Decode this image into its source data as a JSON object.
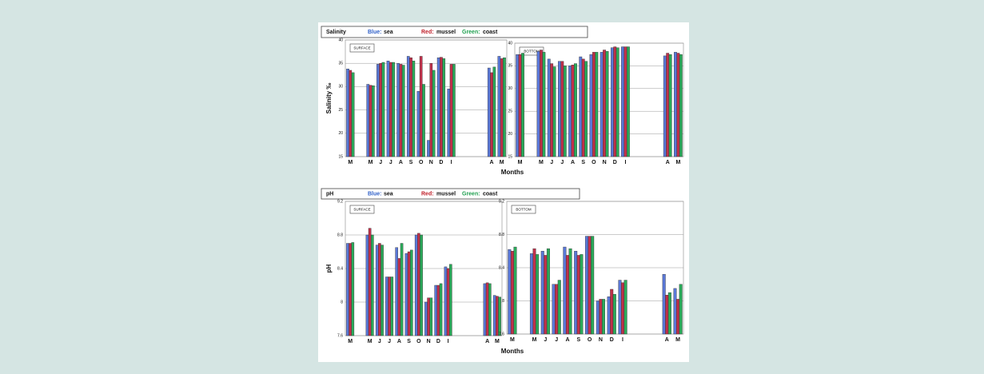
{
  "figures": [
    {
      "legend_title": "Salinity",
      "color_labels": [
        "Blue:",
        "Red:",
        "Green:"
      ],
      "xlabel": "Months"
    },
    {
      "legend_title": "pH",
      "color_labels": [
        "Blue:",
        "Red:",
        "Green:"
      ],
      "xlabel": "Months"
    }
  ],
  "chart_data": [
    {
      "type": "bar",
      "panel_label": "SURFACE",
      "ylabel": "Salinity ‰",
      "categories": [
        "M",
        null,
        "M",
        "J",
        "J",
        "A",
        "S",
        "O",
        "N",
        "D",
        "I",
        null,
        null,
        null,
        "A",
        "M"
      ],
      "ylim": [
        15,
        40
      ],
      "yticks": [
        15,
        20,
        25,
        30,
        35,
        40
      ],
      "grid": true,
      "series": [
        {
          "name": "sea",
          "color": "#5a78d8",
          "values": [
            33.8,
            null,
            30.5,
            34.8,
            35.5,
            35,
            36.5,
            29,
            18.5,
            36.2,
            29.5,
            null,
            null,
            null,
            34,
            36.5
          ]
        },
        {
          "name": "mussel",
          "color": "#c0304a",
          "values": [
            33.5,
            null,
            30.3,
            35,
            35.2,
            34.8,
            36.2,
            36.5,
            35,
            36.3,
            34.8,
            null,
            null,
            null,
            33,
            36
          ]
        },
        {
          "name": "coast",
          "color": "#2aaa5a",
          "values": [
            33,
            null,
            30.2,
            35.2,
            35.2,
            34.6,
            35.5,
            30.5,
            33.5,
            36,
            34.8,
            null,
            null,
            null,
            34.2,
            36.2
          ]
        }
      ]
    },
    {
      "type": "bar",
      "panel_label": "BOTTOM",
      "categories": [
        "M",
        null,
        "M",
        "J",
        "J",
        "A",
        "S",
        "O",
        "N",
        "D",
        "I",
        null,
        null,
        null,
        "A",
        "M"
      ],
      "ylim": [
        15,
        40
      ],
      "yticks": [
        15,
        20,
        25,
        30,
        35,
        40
      ],
      "grid": true,
      "series": [
        {
          "name": "sea",
          "color": "#5a78d8",
          "values": [
            37.5,
            null,
            38.2,
            36.5,
            36,
            35,
            37,
            37.5,
            38,
            39,
            39.2,
            null,
            null,
            null,
            37.2,
            38
          ]
        },
        {
          "name": "mussel",
          "color": "#c0304a",
          "values": [
            37.5,
            null,
            38.5,
            35.5,
            36,
            35.2,
            36.5,
            38,
            38.5,
            39.2,
            39.2,
            null,
            null,
            null,
            37.8,
            37.8
          ]
        },
        {
          "name": "coast",
          "color": "#2aaa5a",
          "values": [
            37.8,
            null,
            38,
            34.8,
            35,
            35.5,
            36,
            38,
            38.2,
            39,
            39.2,
            null,
            null,
            null,
            37.5,
            37.5
          ]
        }
      ]
    },
    {
      "type": "bar",
      "panel_label": "SURFACE",
      "ylabel": "pH",
      "categories": [
        "M",
        null,
        "M",
        "J",
        "J",
        "A",
        "S",
        "O",
        "N",
        "D",
        "I",
        null,
        null,
        null,
        "A",
        "M"
      ],
      "ylim": [
        7.6,
        9.2
      ],
      "yticks": [
        7.6,
        8,
        8.4,
        8.8,
        9.2
      ],
      "grid": true,
      "series": [
        {
          "name": "sea",
          "color": "#5a78d8",
          "values": [
            8.7,
            null,
            8.8,
            8.68,
            8.3,
            8.65,
            8.58,
            8.8,
            8.0,
            8.2,
            8.42,
            null,
            null,
            null,
            8.22,
            8.08
          ]
        },
        {
          "name": "mussel",
          "color": "#c0304a",
          "values": [
            8.7,
            null,
            8.88,
            8.7,
            8.3,
            8.52,
            8.6,
            8.82,
            8.05,
            8.2,
            8.4,
            null,
            null,
            null,
            8.23,
            8.07
          ]
        },
        {
          "name": "coast",
          "color": "#2aaa5a",
          "values": [
            8.71,
            null,
            8.8,
            8.68,
            8.3,
            8.7,
            8.62,
            8.8,
            8.05,
            8.22,
            8.45,
            null,
            null,
            null,
            8.22,
            8.06
          ]
        }
      ]
    },
    {
      "type": "bar",
      "panel_label": "BOTTOM",
      "categories": [
        "M",
        null,
        "M",
        "J",
        "J",
        "A",
        "S",
        "O",
        "N",
        "D",
        "I",
        null,
        null,
        null,
        "A",
        "M"
      ],
      "ylim": [
        7.6,
        9.2
      ],
      "yticks": [
        7.6,
        8,
        8.4,
        8.8,
        9.2
      ],
      "grid": true,
      "series": [
        {
          "name": "sea",
          "color": "#5a78d8",
          "values": [
            8.62,
            null,
            8.57,
            8.6,
            8.2,
            8.65,
            8.6,
            8.78,
            8.0,
            8.05,
            8.25,
            null,
            null,
            null,
            8.32,
            8.15
          ]
        },
        {
          "name": "mussel",
          "color": "#c0304a",
          "values": [
            8.6,
            null,
            8.63,
            8.55,
            8.2,
            8.55,
            8.55,
            8.78,
            8.02,
            8.14,
            8.22,
            null,
            null,
            null,
            8.07,
            8.02
          ]
        },
        {
          "name": "coast",
          "color": "#2aaa5a",
          "values": [
            8.65,
            null,
            8.56,
            8.63,
            8.25,
            8.63,
            8.56,
            8.78,
            8.02,
            8.08,
            8.25,
            null,
            null,
            null,
            8.1,
            8.2
          ]
        }
      ]
    }
  ]
}
